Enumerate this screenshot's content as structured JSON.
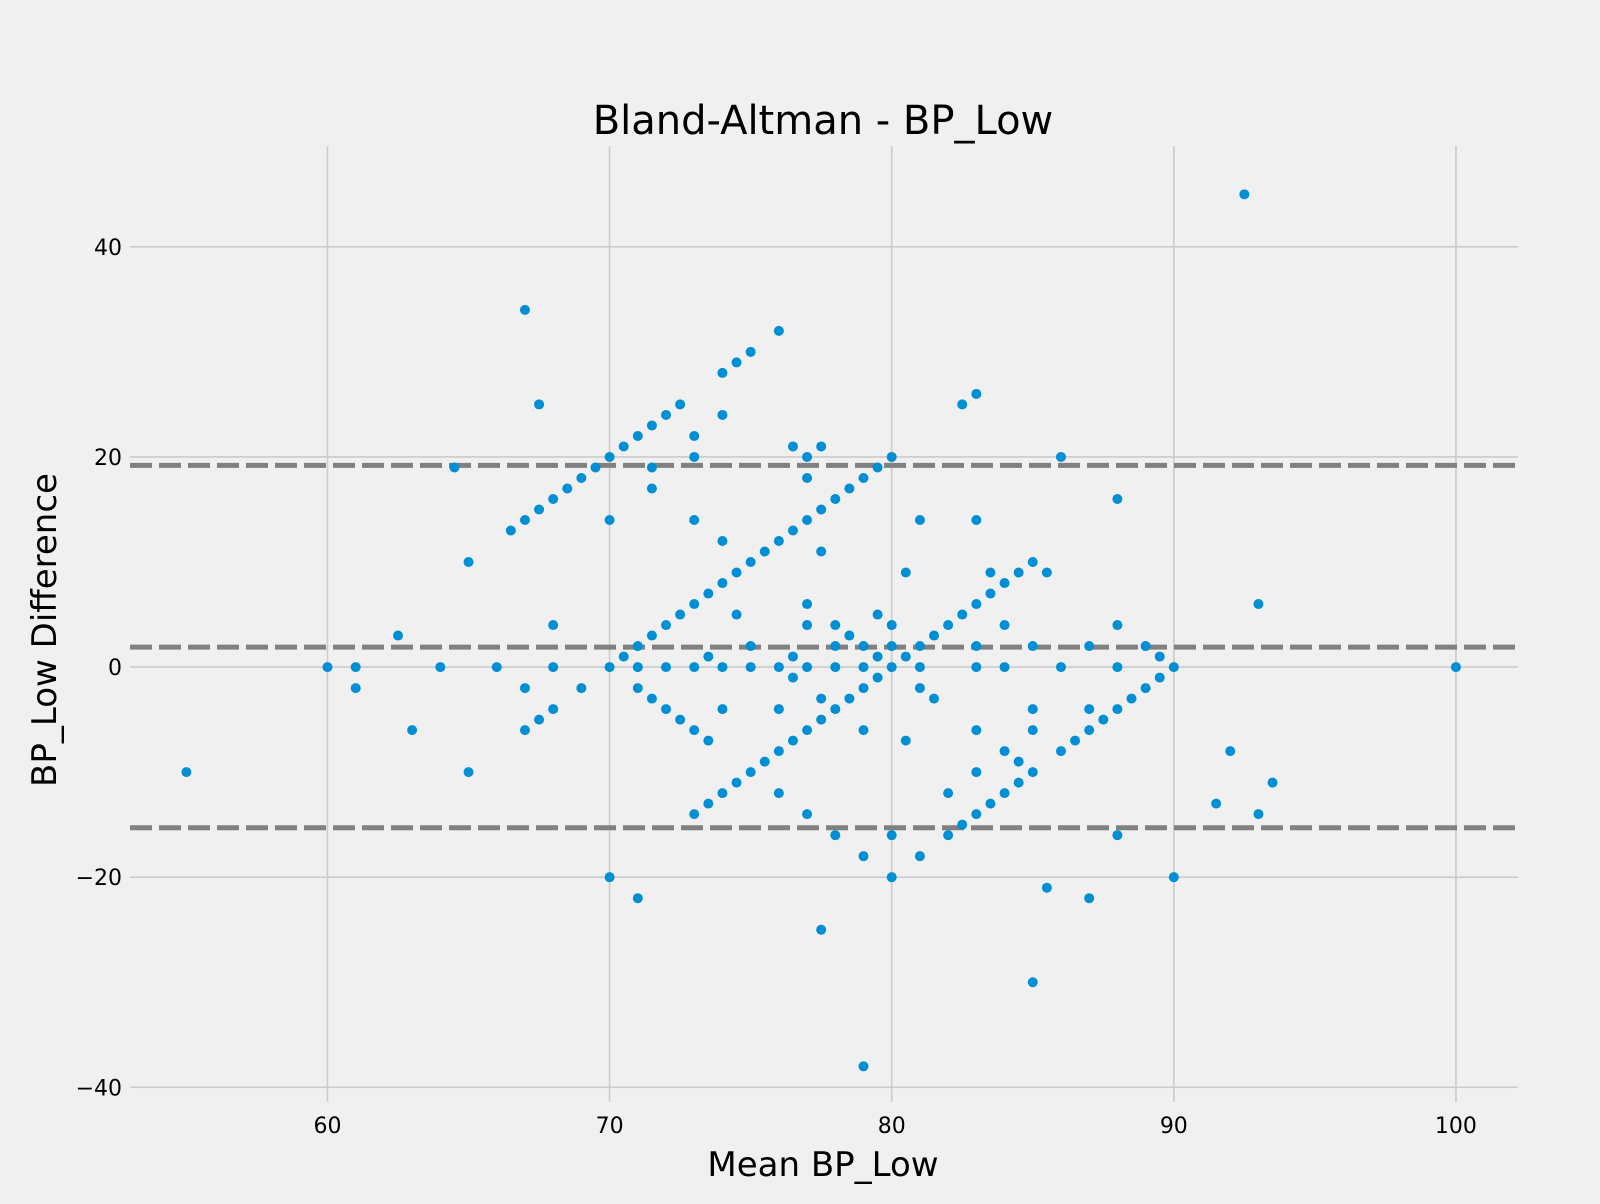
{
  "chart_data": {
    "type": "scatter",
    "title": "Bland-Altman - BP_Low",
    "xlabel": "Mean BP_Low",
    "ylabel": "BP_Low Difference",
    "xlim": [
      53,
      102.2
    ],
    "ylim": [
      -41.4,
      49.6
    ],
    "xticks": [
      60,
      70,
      80,
      90,
      100
    ],
    "yticks": [
      -40,
      -20,
      0,
      20,
      40
    ],
    "xtick_labels": [
      "60",
      "70",
      "80",
      "90",
      "100"
    ],
    "ytick_labels": [
      "−40",
      "−20",
      "0",
      "20",
      "40"
    ],
    "grid": true,
    "legend": "none",
    "reference_lines": [
      {
        "y": 19.2,
        "style": "dashed"
      },
      {
        "y": 1.9,
        "style": "dashed"
      },
      {
        "y": -15.3,
        "style": "dashed"
      }
    ],
    "colors": {
      "background": "#f0f0f0",
      "grid": "#cbcbcb",
      "points": "#008fd5",
      "reference_lines": "#808080"
    },
    "points": [
      {
        "x": 55,
        "y": -10
      },
      {
        "x": 60,
        "y": 0
      },
      {
        "x": 61,
        "y": 0
      },
      {
        "x": 61,
        "y": -2
      },
      {
        "x": 62.5,
        "y": 3
      },
      {
        "x": 63,
        "y": -6
      },
      {
        "x": 64,
        "y": 0
      },
      {
        "x": 64.5,
        "y": 19
      },
      {
        "x": 65,
        "y": 10
      },
      {
        "x": 65,
        "y": -10
      },
      {
        "x": 66,
        "y": 0
      },
      {
        "x": 66.5,
        "y": 13
      },
      {
        "x": 67,
        "y": 34
      },
      {
        "x": 67,
        "y": 14
      },
      {
        "x": 67,
        "y": -2
      },
      {
        "x": 67,
        "y": -6
      },
      {
        "x": 67.5,
        "y": 25
      },
      {
        "x": 67.5,
        "y": 15
      },
      {
        "x": 67.5,
        "y": -5
      },
      {
        "x": 68,
        "y": 16
      },
      {
        "x": 68,
        "y": 4
      },
      {
        "x": 68,
        "y": 0
      },
      {
        "x": 68,
        "y": -4
      },
      {
        "x": 68.5,
        "y": 17
      },
      {
        "x": 69,
        "y": 18
      },
      {
        "x": 69,
        "y": -2
      },
      {
        "x": 69.5,
        "y": 19
      },
      {
        "x": 70,
        "y": 20
      },
      {
        "x": 70,
        "y": 14
      },
      {
        "x": 70,
        "y": 0
      },
      {
        "x": 70,
        "y": -20
      },
      {
        "x": 70.5,
        "y": 21
      },
      {
        "x": 70.5,
        "y": 1
      },
      {
        "x": 71,
        "y": 22
      },
      {
        "x": 71,
        "y": 2
      },
      {
        "x": 71,
        "y": 0
      },
      {
        "x": 71,
        "y": -2
      },
      {
        "x": 71,
        "y": -22
      },
      {
        "x": 71.5,
        "y": 23
      },
      {
        "x": 71.5,
        "y": 19
      },
      {
        "x": 71.5,
        "y": 17
      },
      {
        "x": 71.5,
        "y": 3
      },
      {
        "x": 71.5,
        "y": -3
      },
      {
        "x": 72,
        "y": 24
      },
      {
        "x": 72,
        "y": 4
      },
      {
        "x": 72,
        "y": 0
      },
      {
        "x": 72,
        "y": -4
      },
      {
        "x": 72.5,
        "y": 25
      },
      {
        "x": 72.5,
        "y": 5
      },
      {
        "x": 72.5,
        "y": -5
      },
      {
        "x": 73,
        "y": 22
      },
      {
        "x": 73,
        "y": 20
      },
      {
        "x": 73,
        "y": 14
      },
      {
        "x": 73,
        "y": 6
      },
      {
        "x": 73,
        "y": 0
      },
      {
        "x": 73,
        "y": -6
      },
      {
        "x": 73,
        "y": -14
      },
      {
        "x": 73.5,
        "y": 7
      },
      {
        "x": 73.5,
        "y": 1
      },
      {
        "x": 73.5,
        "y": -7
      },
      {
        "x": 73.5,
        "y": -13
      },
      {
        "x": 74,
        "y": 28
      },
      {
        "x": 74,
        "y": 24
      },
      {
        "x": 74,
        "y": 12
      },
      {
        "x": 74,
        "y": 8
      },
      {
        "x": 74,
        "y": 0
      },
      {
        "x": 74,
        "y": -4
      },
      {
        "x": 74,
        "y": -12
      },
      {
        "x": 74.5,
        "y": 29
      },
      {
        "x": 74.5,
        "y": 9
      },
      {
        "x": 74.5,
        "y": 5
      },
      {
        "x": 74.5,
        "y": -11
      },
      {
        "x": 75,
        "y": 30
      },
      {
        "x": 75,
        "y": 10
      },
      {
        "x": 75,
        "y": 2
      },
      {
        "x": 75,
        "y": 0
      },
      {
        "x": 75,
        "y": -10
      },
      {
        "x": 75.5,
        "y": 11
      },
      {
        "x": 75.5,
        "y": -9
      },
      {
        "x": 76,
        "y": 32
      },
      {
        "x": 76,
        "y": 12
      },
      {
        "x": 76,
        "y": 0
      },
      {
        "x": 76,
        "y": -4
      },
      {
        "x": 76,
        "y": -8
      },
      {
        "x": 76,
        "y": -12
      },
      {
        "x": 76.5,
        "y": 21
      },
      {
        "x": 76.5,
        "y": 13
      },
      {
        "x": 76.5,
        "y": 1
      },
      {
        "x": 76.5,
        "y": -1
      },
      {
        "x": 76.5,
        "y": -7
      },
      {
        "x": 77,
        "y": 20
      },
      {
        "x": 77,
        "y": 18
      },
      {
        "x": 77,
        "y": 14
      },
      {
        "x": 77,
        "y": 6
      },
      {
        "x": 77,
        "y": 4
      },
      {
        "x": 77,
        "y": 0
      },
      {
        "x": 77,
        "y": -6
      },
      {
        "x": 77,
        "y": -14
      },
      {
        "x": 77.5,
        "y": 21
      },
      {
        "x": 77.5,
        "y": 15
      },
      {
        "x": 77.5,
        "y": 11
      },
      {
        "x": 77.5,
        "y": -3
      },
      {
        "x": 77.5,
        "y": -5
      },
      {
        "x": 77.5,
        "y": -25
      },
      {
        "x": 78,
        "y": 16
      },
      {
        "x": 78,
        "y": 4
      },
      {
        "x": 78,
        "y": 2
      },
      {
        "x": 78,
        "y": 0
      },
      {
        "x": 78,
        "y": -4
      },
      {
        "x": 78,
        "y": -16
      },
      {
        "x": 78.5,
        "y": 17
      },
      {
        "x": 78.5,
        "y": 3
      },
      {
        "x": 78.5,
        "y": -3
      },
      {
        "x": 79,
        "y": 18
      },
      {
        "x": 79,
        "y": 2
      },
      {
        "x": 79,
        "y": 0
      },
      {
        "x": 79,
        "y": -2
      },
      {
        "x": 79,
        "y": -6
      },
      {
        "x": 79,
        "y": -18
      },
      {
        "x": 79,
        "y": -38
      },
      {
        "x": 79.5,
        "y": 19
      },
      {
        "x": 79.5,
        "y": 5
      },
      {
        "x": 79.5,
        "y": 1
      },
      {
        "x": 79.5,
        "y": -1
      },
      {
        "x": 80,
        "y": 20
      },
      {
        "x": 80,
        "y": 4
      },
      {
        "x": 80,
        "y": 2
      },
      {
        "x": 80,
        "y": 0
      },
      {
        "x": 80,
        "y": -16
      },
      {
        "x": 80,
        "y": -20
      },
      {
        "x": 80.5,
        "y": 9
      },
      {
        "x": 80.5,
        "y": 1
      },
      {
        "x": 80.5,
        "y": -7
      },
      {
        "x": 81,
        "y": 14
      },
      {
        "x": 81,
        "y": 2
      },
      {
        "x": 81,
        "y": 0
      },
      {
        "x": 81,
        "y": -2
      },
      {
        "x": 81,
        "y": -18
      },
      {
        "x": 81.5,
        "y": 3
      },
      {
        "x": 81.5,
        "y": -3
      },
      {
        "x": 82,
        "y": 4
      },
      {
        "x": 82,
        "y": -12
      },
      {
        "x": 82,
        "y": -16
      },
      {
        "x": 82.5,
        "y": 25
      },
      {
        "x": 82.5,
        "y": 5
      },
      {
        "x": 82.5,
        "y": -15
      },
      {
        "x": 83,
        "y": 26
      },
      {
        "x": 83,
        "y": 14
      },
      {
        "x": 83,
        "y": 6
      },
      {
        "x": 83,
        "y": 2
      },
      {
        "x": 83,
        "y": 0
      },
      {
        "x": 83,
        "y": -6
      },
      {
        "x": 83,
        "y": -10
      },
      {
        "x": 83,
        "y": -14
      },
      {
        "x": 83.5,
        "y": 9
      },
      {
        "x": 83.5,
        "y": 7
      },
      {
        "x": 83.5,
        "y": -13
      },
      {
        "x": 84,
        "y": 8
      },
      {
        "x": 84,
        "y": 4
      },
      {
        "x": 84,
        "y": 0
      },
      {
        "x": 84,
        "y": -8
      },
      {
        "x": 84,
        "y": -12
      },
      {
        "x": 84.5,
        "y": 9
      },
      {
        "x": 84.5,
        "y": -9
      },
      {
        "x": 84.5,
        "y": -11
      },
      {
        "x": 85,
        "y": 10
      },
      {
        "x": 85,
        "y": 2
      },
      {
        "x": 85,
        "y": -4
      },
      {
        "x": 85,
        "y": -6
      },
      {
        "x": 85,
        "y": -10
      },
      {
        "x": 85,
        "y": -30
      },
      {
        "x": 85.5,
        "y": 9
      },
      {
        "x": 85.5,
        "y": -21
      },
      {
        "x": 86,
        "y": 20
      },
      {
        "x": 86,
        "y": 0
      },
      {
        "x": 86,
        "y": -8
      },
      {
        "x": 86.5,
        "y": -7
      },
      {
        "x": 87,
        "y": 2
      },
      {
        "x": 87,
        "y": -4
      },
      {
        "x": 87,
        "y": -6
      },
      {
        "x": 87,
        "y": -22
      },
      {
        "x": 87.5,
        "y": -5
      },
      {
        "x": 88,
        "y": 16
      },
      {
        "x": 88,
        "y": 4
      },
      {
        "x": 88,
        "y": 0
      },
      {
        "x": 88,
        "y": -4
      },
      {
        "x": 88,
        "y": -16
      },
      {
        "x": 88.5,
        "y": -3
      },
      {
        "x": 89,
        "y": 2
      },
      {
        "x": 89,
        "y": -2
      },
      {
        "x": 89.5,
        "y": 1
      },
      {
        "x": 89.5,
        "y": -1
      },
      {
        "x": 90,
        "y": 0
      },
      {
        "x": 90,
        "y": -20
      },
      {
        "x": 91.5,
        "y": -13
      },
      {
        "x": 92,
        "y": -8
      },
      {
        "x": 92.5,
        "y": 45
      },
      {
        "x": 93,
        "y": 6
      },
      {
        "x": 93,
        "y": -14
      },
      {
        "x": 93.5,
        "y": -11
      },
      {
        "x": 100,
        "y": 0
      }
    ]
  }
}
